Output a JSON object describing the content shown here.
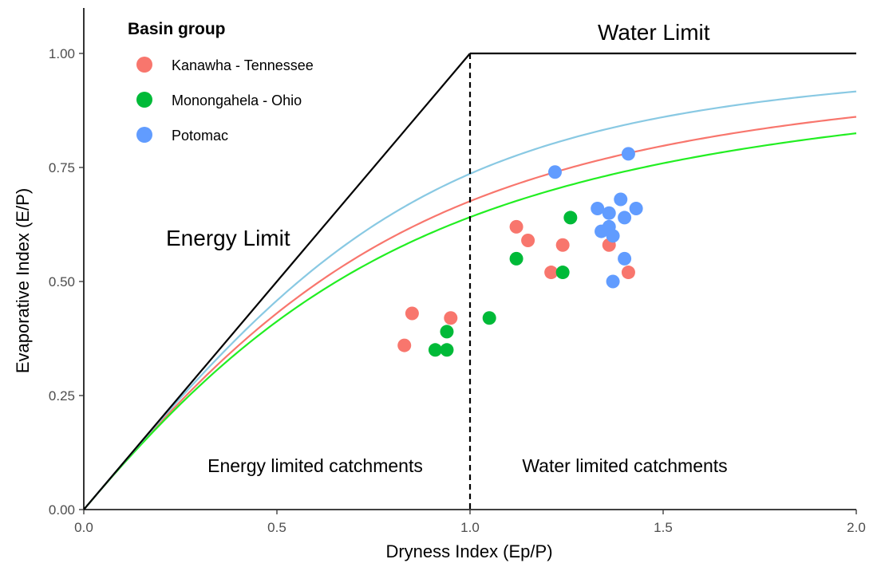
{
  "chart_data": {
    "type": "scatter",
    "xlabel": "Dryness Index (Ep/P)",
    "ylabel": "Evaporative Index (E/P)",
    "xlim": [
      0,
      2
    ],
    "ylim": [
      0,
      1
    ],
    "x_ticks": [
      "0.0",
      "0.5",
      "1.0",
      "1.5",
      "2.0"
    ],
    "y_ticks": [
      "0.00",
      "0.25",
      "0.50",
      "0.75",
      "1.00"
    ],
    "legend_title": "Basin group",
    "legend_position": "top-left",
    "grid": false,
    "series": [
      {
        "name": "Kanawha - Tennessee",
        "color": "#F8766D",
        "curve_color": "#F8766D",
        "budyko_w": 2.47,
        "points": [
          [
            0.83,
            0.36
          ],
          [
            0.85,
            0.43
          ],
          [
            0.95,
            0.42
          ],
          [
            1.12,
            0.62
          ],
          [
            1.15,
            0.59
          ],
          [
            1.21,
            0.52
          ],
          [
            1.24,
            0.58
          ],
          [
            1.36,
            0.58
          ],
          [
            1.41,
            0.52
          ]
        ]
      },
      {
        "name": "Monongahela - Ohio",
        "color": "#00BA38",
        "curve_color": "#22EE22",
        "budyko_w": 2.26,
        "points": [
          [
            0.91,
            0.35
          ],
          [
            0.94,
            0.35
          ],
          [
            0.94,
            0.39
          ],
          [
            1.05,
            0.42
          ],
          [
            1.12,
            0.55
          ],
          [
            1.24,
            0.52
          ],
          [
            1.26,
            0.64
          ]
        ]
      },
      {
        "name": "Potomac",
        "color": "#619CFF",
        "curve_color": "#89C9E3",
        "budyko_w": 2.96,
        "points": [
          [
            1.22,
            0.74
          ],
          [
            1.33,
            0.66
          ],
          [
            1.34,
            0.61
          ],
          [
            1.36,
            0.62
          ],
          [
            1.36,
            0.65
          ],
          [
            1.37,
            0.6
          ],
          [
            1.37,
            0.5
          ],
          [
            1.39,
            0.68
          ],
          [
            1.4,
            0.64
          ],
          [
            1.4,
            0.55
          ],
          [
            1.41,
            0.78
          ],
          [
            1.43,
            0.66
          ]
        ]
      }
    ],
    "limits": {
      "energy_limit_label": "Energy Limit",
      "water_limit_label": "Water Limit",
      "divider_x": 1.0
    },
    "annotations": {
      "energy_region": "Energy limited catchments",
      "water_region": "Water limited catchments"
    }
  }
}
